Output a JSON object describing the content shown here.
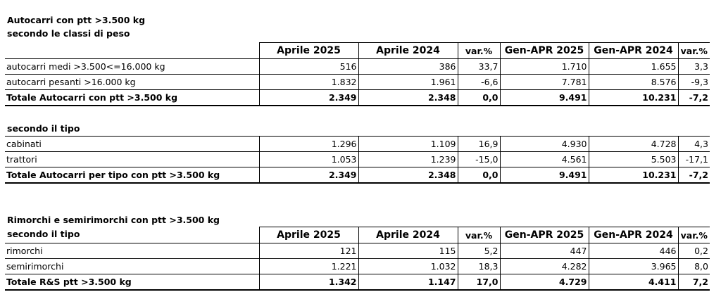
{
  "section1": {
    "title": "Autocarri con ptt >3.500 kg",
    "subtitle": "secondo le classi di peso",
    "columns": [
      "",
      "Aprile 2025",
      "Aprile 2024",
      "var.%",
      "Gen-APR 2025",
      "Gen-APR 2024",
      "var.%"
    ],
    "rows": [
      [
        "autocarri medi >3.500<=16.000 kg",
        "516",
        "386",
        "33,7",
        "1.710",
        "1.655",
        "3,3"
      ],
      [
        "autocarri pesanti >16.000 kg",
        "1.832",
        "1.961",
        "-6,6",
        "7.781",
        "8.576",
        "-9,3"
      ]
    ],
    "total": [
      "Totale Autocarri con ptt >3.500 kg",
      "2.349",
      "2.348",
      "0,0",
      "9.491",
      "10.231",
      "-7,2"
    ]
  },
  "section2": {
    "subtitle": "secondo il tipo",
    "rows": [
      [
        "cabinati",
        "1.296",
        "1.109",
        "16,9",
        "4.930",
        "4.728",
        "4,3"
      ],
      [
        "trattori",
        "1.053",
        "1.239",
        "-15,0",
        "4.561",
        "5.503",
        "-17,1"
      ]
    ],
    "total": [
      "Totale Autocarri per tipo con ptt >3.500 kg",
      "2.349",
      "2.348",
      "0,0",
      "9.491",
      "10.231",
      "-7,2"
    ]
  },
  "section3": {
    "title": "Rimorchi e semirimorchi con ptt >3.500 kg",
    "subtitle": "secondo il tipo",
    "columns": [
      "",
      "Aprile 2025",
      "Aprile 2024",
      "var.%",
      "Gen-APR 2025",
      "Gen-APR 2024",
      "var.%"
    ],
    "rows": [
      [
        "rimorchi",
        "121",
        "115",
        "5,2",
        "447",
        "446",
        "0,2"
      ],
      [
        "semirimorchi",
        "1.221",
        "1.032",
        "18,3",
        "4.282",
        "3.965",
        "8,0"
      ]
    ],
    "total": [
      "Totale R&S ptt >3.500 kg",
      "1.342",
      "1.147",
      "17,0",
      "4.729",
      "4.411",
      "7,2"
    ]
  }
}
